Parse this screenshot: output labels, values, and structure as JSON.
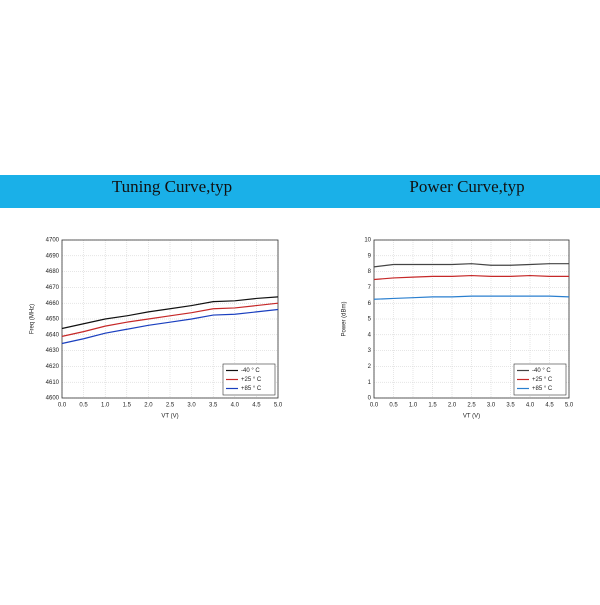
{
  "chart_data": [
    {
      "type": "line",
      "title": "Tuning Curve,typ",
      "x_label": "VT (V)",
      "y_label": "Freq (MHz)",
      "x": [
        0,
        0.5,
        1,
        1.5,
        2,
        2.5,
        3,
        3.5,
        4,
        4.5,
        5
      ],
      "series": [
        {
          "name": "-40 ° C",
          "color": "#111111",
          "values": [
            4644,
            4647,
            4650,
            4652,
            4654.5,
            4656.5,
            4658.5,
            4661,
            4661.5,
            4663,
            4664
          ]
        },
        {
          "name": "+25 ° C",
          "color": "#c62828",
          "values": [
            4639,
            4642,
            4645.5,
            4648,
            4650,
            4652,
            4654,
            4656.5,
            4657,
            4658.5,
            4660
          ]
        },
        {
          "name": "+85 ° C",
          "color": "#1a3fbf",
          "values": [
            4634.5,
            4637.5,
            4641,
            4643.5,
            4646,
            4648,
            4650,
            4652.5,
            4653,
            4654.5,
            4656
          ]
        }
      ],
      "xlim": [
        0,
        5
      ],
      "xticks": [
        {
          "value": 0,
          "label": "0.0"
        },
        0.5,
        {
          "value": 1,
          "label": "1.0"
        },
        1.5,
        {
          "value": 2,
          "label": "2.0"
        },
        2.5,
        {
          "value": 3,
          "label": "3.0"
        },
        3.5,
        {
          "value": 4,
          "label": "4.0"
        },
        4.5,
        {
          "value": 5,
          "label": "5.0"
        }
      ],
      "ylim": [
        4600,
        4700
      ],
      "yticks": [
        4600,
        4610,
        4620,
        4630,
        4640,
        4650,
        4660,
        4670,
        4680,
        4690,
        4700
      ],
      "grid": true,
      "legend": "lower right"
    },
    {
      "type": "line",
      "title": "Power Curve,typ",
      "x_label": "VT (V)",
      "y_label": "Power (dBm)",
      "x": [
        0,
        0.5,
        1,
        1.5,
        2,
        2.5,
        3,
        3.5,
        4,
        4.5,
        5
      ],
      "series": [
        {
          "name": "-40 ° C",
          "color": "#444444",
          "values": [
            8.3,
            8.45,
            8.45,
            8.45,
            8.45,
            8.5,
            8.4,
            8.4,
            8.45,
            8.5,
            8.5
          ]
        },
        {
          "name": "+25 ° C",
          "color": "#c62828",
          "values": [
            7.5,
            7.6,
            7.65,
            7.7,
            7.7,
            7.75,
            7.7,
            7.7,
            7.75,
            7.7,
            7.7
          ]
        },
        {
          "name": "+85 ° C",
          "color": "#2a7fcf",
          "values": [
            6.25,
            6.3,
            6.35,
            6.4,
            6.4,
            6.45,
            6.45,
            6.45,
            6.45,
            6.45,
            6.4
          ]
        }
      ],
      "xlim": [
        0,
        5
      ],
      "xticks": [
        {
          "value": 0,
          "label": "0.0"
        },
        0.5,
        {
          "value": 1,
          "label": "1.0"
        },
        1.5,
        {
          "value": 2,
          "label": "2.0"
        },
        2.5,
        {
          "value": 3,
          "label": "3.0"
        },
        3.5,
        {
          "value": 4,
          "label": "4.0"
        },
        4.5,
        {
          "value": 5,
          "label": "5.0"
        }
      ],
      "ylim": [
        0,
        10
      ],
      "yticks": [
        0,
        1,
        2,
        3,
        4,
        5,
        6,
        7,
        8,
        9,
        10
      ],
      "grid": true,
      "legend": "lower right"
    }
  ]
}
